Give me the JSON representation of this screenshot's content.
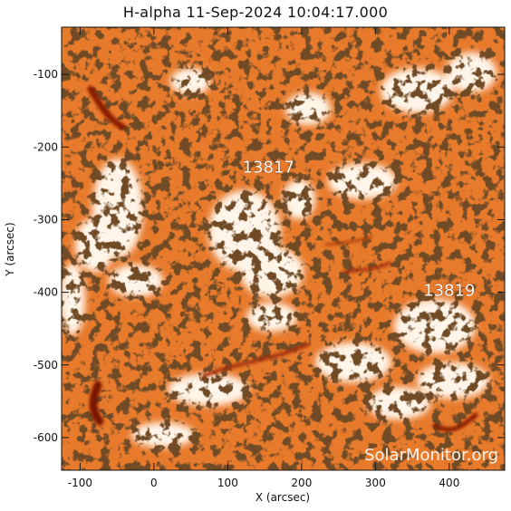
{
  "figure": {
    "title": "H-alpha 11-Sep-2024 10:04:17.000",
    "xlabel": "X (arcsec)",
    "ylabel": "Y (arcsec)",
    "x_ticks": [
      -100,
      0,
      100,
      200,
      300,
      400
    ],
    "y_ticks": [
      -100,
      -200,
      -300,
      -400,
      -500,
      -600
    ],
    "xlim": [
      -125,
      475
    ],
    "ylim": [
      -645,
      -35
    ],
    "watermark": "SolarMonitor.org",
    "colors": {
      "background_orange": "#e87a2c",
      "bright_plage": "#fff6ec",
      "dark_filament": "#8a1a05",
      "mottle_dark": "#2a1408"
    }
  },
  "active_regions": [
    {
      "label": "13817",
      "x": 155,
      "y": -235
    },
    {
      "label": "13819",
      "x": 400,
      "y": -405
    }
  ]
}
